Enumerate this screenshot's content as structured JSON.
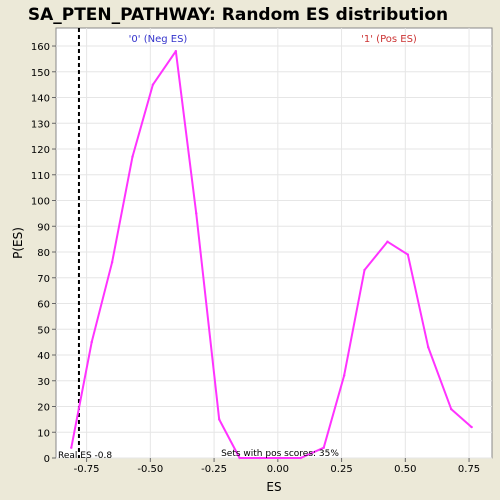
{
  "chart_data": {
    "type": "line",
    "title": "SA_PTEN_PATHWAY: Random ES distribution",
    "xlabel": "ES",
    "ylabel": "P(ES)",
    "xlim": [
      -0.87,
      0.84
    ],
    "ylim": [
      0,
      167
    ],
    "xticks": [
      -0.75,
      -0.5,
      -0.25,
      0.0,
      0.25,
      0.5,
      0.75
    ],
    "xtick_labels": [
      "-0.75",
      "-0.50",
      "-0.25",
      "0.00",
      "0.25",
      "0.50",
      "0.75"
    ],
    "yticks": [
      0,
      10,
      20,
      30,
      40,
      50,
      60,
      70,
      80,
      90,
      100,
      110,
      120,
      130,
      140,
      150,
      160
    ],
    "grid": true,
    "series": [
      {
        "color": "#ff33ff",
        "x": [
          -0.81,
          -0.73,
          -0.65,
          -0.57,
          -0.49,
          -0.4,
          -0.32,
          -0.23,
          -0.15,
          -0.07,
          0.01,
          0.09,
          0.18,
          0.26,
          0.34,
          0.43,
          0.51,
          0.59,
          0.68,
          0.76
        ],
        "y": [
          4,
          45,
          76,
          117,
          145,
          158,
          95,
          15,
          0,
          0,
          0,
          0,
          4,
          32,
          73,
          84,
          79,
          43,
          19,
          12
        ]
      }
    ],
    "annotations": {
      "neg_label": "'0' (Neg ES)",
      "pos_label": "'1' (Pos ES)",
      "real_es_label": "Real ES -0.8",
      "real_es_value": -0.78,
      "pos_scores_label": "Sets with pos scores: 35%"
    },
    "colors": {
      "line": "#ff33ff",
      "neg_label": "#3333cc",
      "pos_label": "#cc3333",
      "grid": "#e6e6e6",
      "background": "#ece9d8",
      "plot_bg": "#ffffff"
    }
  }
}
